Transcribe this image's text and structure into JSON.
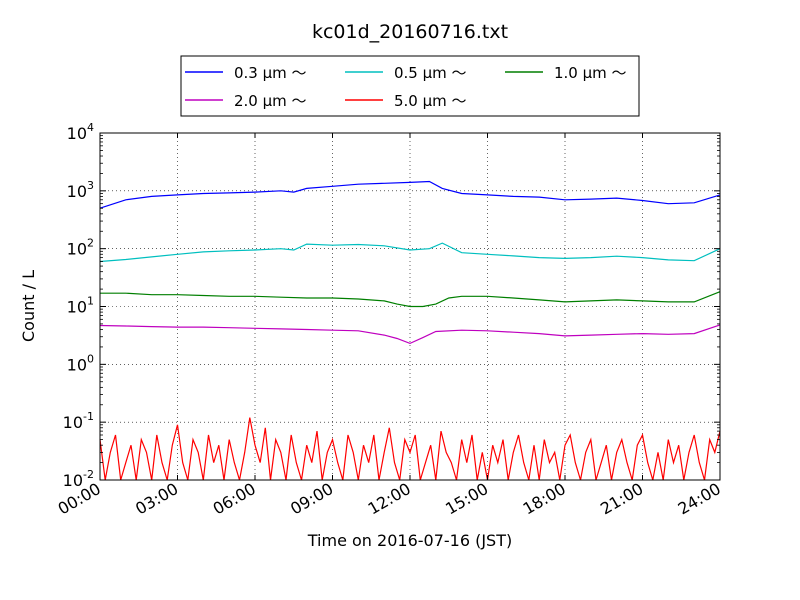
{
  "chart_data": {
    "type": "line",
    "title": "kc01d_20160716.txt",
    "xlabel": "Time on 2016-07-16 (JST)",
    "ylabel": "Count / L",
    "y_scale": "log",
    "xlim": [
      "00:00",
      "24:00"
    ],
    "ylim": [
      0.01,
      10000
    ],
    "grid": true,
    "legend": "top-center-outside",
    "x_ticks": [
      "00:00",
      "03:00",
      "06:00",
      "09:00",
      "12:00",
      "15:00",
      "18:00",
      "21:00",
      "24:00"
    ],
    "y_ticks": [
      {
        "base": "10",
        "exp": "-2",
        "value": 0.01
      },
      {
        "base": "10",
        "exp": "-1",
        "value": 0.1
      },
      {
        "base": "10",
        "exp": "0",
        "value": 1
      },
      {
        "base": "10",
        "exp": "1",
        "value": 10
      },
      {
        "base": "10",
        "exp": "2",
        "value": 100
      },
      {
        "base": "10",
        "exp": "3",
        "value": 1000
      },
      {
        "base": "10",
        "exp": "4",
        "value": 10000
      }
    ],
    "series": [
      {
        "name": "0.3 μm ～",
        "color": "#0000ff",
        "x": [
          "00:00",
          "01:00",
          "02:00",
          "03:00",
          "04:00",
          "05:00",
          "06:00",
          "07:00",
          "07:30",
          "08:00",
          "09:00",
          "10:00",
          "11:00",
          "12:00",
          "12:45",
          "13:15",
          "14:00",
          "15:00",
          "16:00",
          "17:00",
          "18:00",
          "19:00",
          "20:00",
          "21:00",
          "22:00",
          "23:00",
          "24:00"
        ],
        "y": [
          500,
          700,
          800,
          850,
          900,
          920,
          950,
          1000,
          950,
          1100,
          1200,
          1300,
          1350,
          1400,
          1450,
          1100,
          900,
          850,
          800,
          780,
          700,
          720,
          750,
          680,
          600,
          620,
          850
        ]
      },
      {
        "name": "0.5 μm ～",
        "color": "#00bfbf",
        "x": [
          "00:00",
          "01:00",
          "02:00",
          "03:00",
          "04:00",
          "05:00",
          "06:00",
          "07:00",
          "07:30",
          "08:00",
          "09:00",
          "10:00",
          "11:00",
          "12:00",
          "12:45",
          "13:15",
          "14:00",
          "15:00",
          "16:00",
          "17:00",
          "18:00",
          "19:00",
          "20:00",
          "21:00",
          "22:00",
          "23:00",
          "24:00"
        ],
        "y": [
          60,
          65,
          72,
          80,
          88,
          92,
          95,
          100,
          95,
          120,
          115,
          118,
          112,
          95,
          100,
          125,
          85,
          80,
          75,
          70,
          68,
          70,
          74,
          70,
          64,
          62,
          100
        ]
      },
      {
        "name": "1.0 μm ～",
        "color": "#007f00",
        "x": [
          "00:00",
          "01:00",
          "02:00",
          "03:00",
          "04:00",
          "05:00",
          "06:00",
          "07:00",
          "08:00",
          "09:00",
          "10:00",
          "11:00",
          "11:30",
          "12:00",
          "12:30",
          "13:00",
          "13:30",
          "14:00",
          "15:00",
          "16:00",
          "17:00",
          "18:00",
          "19:00",
          "20:00",
          "21:00",
          "22:00",
          "23:00",
          "24:00"
        ],
        "y": [
          17,
          17,
          16,
          16,
          15.5,
          15,
          15,
          14.5,
          14,
          14,
          13.5,
          12.5,
          11,
          10,
          10,
          11,
          14,
          15,
          15,
          14,
          13,
          12,
          12.5,
          13,
          12.5,
          12,
          12,
          18
        ]
      },
      {
        "name": "2.0 μm ～",
        "color": "#bf00bf",
        "x": [
          "00:00",
          "01:00",
          "02:00",
          "03:00",
          "04:00",
          "05:00",
          "06:00",
          "07:00",
          "08:00",
          "09:00",
          "10:00",
          "11:00",
          "11:30",
          "12:00",
          "12:30",
          "13:00",
          "14:00",
          "15:00",
          "16:00",
          "17:00",
          "18:00",
          "19:00",
          "20:00",
          "21:00",
          "22:00",
          "23:00",
          "24:00"
        ],
        "y": [
          4.7,
          4.6,
          4.5,
          4.4,
          4.4,
          4.3,
          4.2,
          4.1,
          4,
          3.9,
          3.8,
          3.2,
          2.8,
          2.3,
          2.9,
          3.7,
          3.9,
          3.8,
          3.6,
          3.4,
          3.1,
          3.2,
          3.3,
          3.4,
          3.3,
          3.4,
          4.8
        ]
      },
      {
        "name": "5.0 μm ～",
        "color": "#ff0000",
        "description": "noisy counts fluctuating between 0.01 and ~0.12, mostly 0.01–0.05",
        "x_start": "00:00",
        "x_step_minutes": 12,
        "y": [
          0.05,
          0.01,
          0.03,
          0.06,
          0.01,
          0.02,
          0.04,
          0.01,
          0.05,
          0.03,
          0.01,
          0.06,
          0.02,
          0.01,
          0.04,
          0.09,
          0.02,
          0.01,
          0.05,
          0.03,
          0.01,
          0.06,
          0.02,
          0.04,
          0.01,
          0.05,
          0.02,
          0.01,
          0.03,
          0.12,
          0.04,
          0.02,
          0.08,
          0.01,
          0.05,
          0.03,
          0.01,
          0.06,
          0.02,
          0.01,
          0.04,
          0.02,
          0.07,
          0.01,
          0.03,
          0.05,
          0.02,
          0.01,
          0.06,
          0.03,
          0.01,
          0.04,
          0.02,
          0.06,
          0.01,
          0.03,
          0.08,
          0.02,
          0.01,
          0.05,
          0.03,
          0.06,
          0.01,
          0.02,
          0.04,
          0.01,
          0.07,
          0.03,
          0.02,
          0.01,
          0.05,
          0.02,
          0.06,
          0.01,
          0.03,
          0.01,
          0.04,
          0.02,
          0.05,
          0.01,
          0.03,
          0.06,
          0.02,
          0.01,
          0.04,
          0.01,
          0.05,
          0.02,
          0.03,
          0.01,
          0.04,
          0.06,
          0.02,
          0.01,
          0.03,
          0.05,
          0.01,
          0.02,
          0.04,
          0.01,
          0.03,
          0.05,
          0.02,
          0.01,
          0.04,
          0.06,
          0.02,
          0.01,
          0.03,
          0.01,
          0.05,
          0.02,
          0.04,
          0.01,
          0.03,
          0.06,
          0.02,
          0.01,
          0.05,
          0.03,
          0.07
        ]
      }
    ]
  }
}
